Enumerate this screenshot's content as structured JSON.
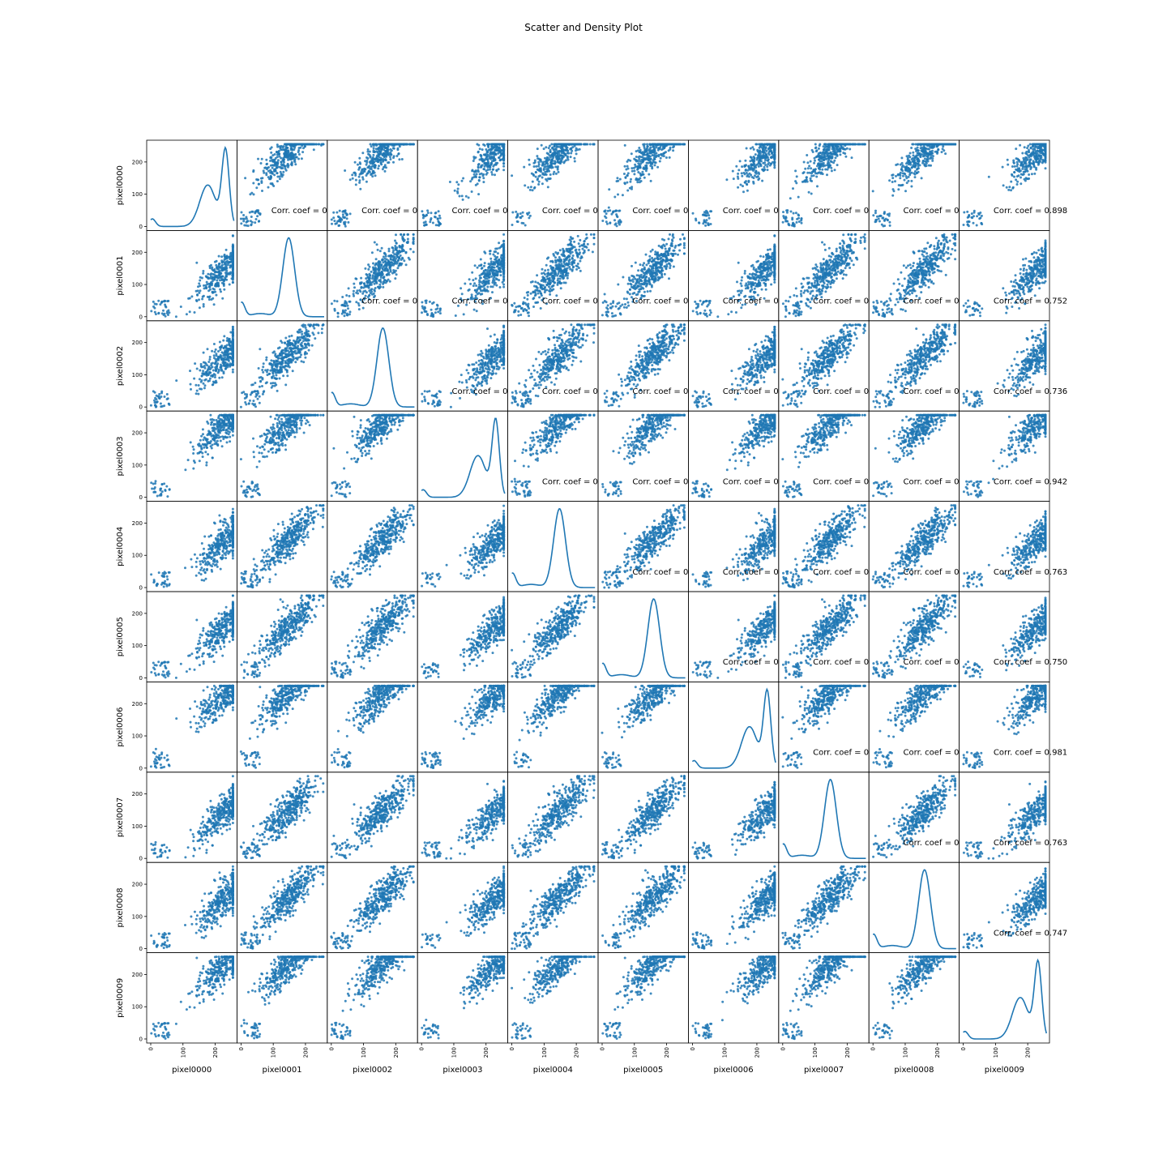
{
  "chart_data": {
    "type": "scatter-matrix",
    "title": "Scatter and Density Plot",
    "variables": [
      "pixel0000",
      "pixel0001",
      "pixel0002",
      "pixel0003",
      "pixel0004",
      "pixel0005",
      "pixel0006",
      "pixel0007",
      "pixel0008",
      "pixel0009"
    ],
    "diagonal": "kde",
    "offdiagonal": "scatter",
    "axis_range": [
      0,
      255
    ],
    "ticks": [
      0,
      100,
      200
    ],
    "tick_labels": [
      "0",
      "100",
      "200"
    ],
    "grid": false,
    "series_color": "#1f77b4",
    "corr_annotations": [
      {
        "row": 0,
        "col": 1,
        "text": "Corr. coef = 0"
      },
      {
        "row": 0,
        "col": 2,
        "text": "Corr. coef = 0"
      },
      {
        "row": 0,
        "col": 3,
        "text": "Corr. coef = 0"
      },
      {
        "row": 0,
        "col": 4,
        "text": "Corr. coef = 0"
      },
      {
        "row": 0,
        "col": 5,
        "text": "Corr. coef = 0"
      },
      {
        "row": 0,
        "col": 6,
        "text": "Corr. coef = 0"
      },
      {
        "row": 0,
        "col": 7,
        "text": "Corr. coef = 0"
      },
      {
        "row": 0,
        "col": 8,
        "text": "Corr. coef = 0"
      },
      {
        "row": 0,
        "col": 9,
        "text": "Corr. coef = 0.898"
      },
      {
        "row": 1,
        "col": 2,
        "text": "Corr. coef = 0"
      },
      {
        "row": 1,
        "col": 3,
        "text": "Corr. coef = 0"
      },
      {
        "row": 1,
        "col": 4,
        "text": "Corr. coef = 0"
      },
      {
        "row": 1,
        "col": 5,
        "text": "Corr. coef = 0"
      },
      {
        "row": 1,
        "col": 6,
        "text": "Corr. coef = 0"
      },
      {
        "row": 1,
        "col": 7,
        "text": "Corr. coef = 0"
      },
      {
        "row": 1,
        "col": 8,
        "text": "Corr. coef = 0"
      },
      {
        "row": 1,
        "col": 9,
        "text": "Corr. coef = 0.752"
      },
      {
        "row": 2,
        "col": 3,
        "text": "Corr. coef = 0"
      },
      {
        "row": 2,
        "col": 4,
        "text": "Corr. coef = 0"
      },
      {
        "row": 2,
        "col": 5,
        "text": "Corr. coef = 0"
      },
      {
        "row": 2,
        "col": 6,
        "text": "Corr. coef = 0"
      },
      {
        "row": 2,
        "col": 7,
        "text": "Corr. coef = 0"
      },
      {
        "row": 2,
        "col": 8,
        "text": "Corr. coef = 0"
      },
      {
        "row": 2,
        "col": 9,
        "text": "Corr. coef = 0.736"
      },
      {
        "row": 3,
        "col": 4,
        "text": "Corr. coef = 0"
      },
      {
        "row": 3,
        "col": 5,
        "text": "Corr. coef = 0"
      },
      {
        "row": 3,
        "col": 6,
        "text": "Corr. coef = 0"
      },
      {
        "row": 3,
        "col": 7,
        "text": "Corr. coef = 0"
      },
      {
        "row": 3,
        "col": 8,
        "text": "Corr. coef = 0"
      },
      {
        "row": 3,
        "col": 9,
        "text": "Corr. coef = 0.942"
      },
      {
        "row": 4,
        "col": 5,
        "text": "Corr. coef = 0"
      },
      {
        "row": 4,
        "col": 6,
        "text": "Corr. coef = 0"
      },
      {
        "row": 4,
        "col": 7,
        "text": "Corr. coef = 0"
      },
      {
        "row": 4,
        "col": 8,
        "text": "Corr. coef = 0"
      },
      {
        "row": 4,
        "col": 9,
        "text": "Corr. coef = 0.763"
      },
      {
        "row": 5,
        "col": 6,
        "text": "Corr. coef = 0"
      },
      {
        "row": 5,
        "col": 7,
        "text": "Corr. coef = 0"
      },
      {
        "row": 5,
        "col": 8,
        "text": "Corr. coef = 0"
      },
      {
        "row": 5,
        "col": 9,
        "text": "Corr. coef = 0.750"
      },
      {
        "row": 6,
        "col": 7,
        "text": "Corr. coef = 0"
      },
      {
        "row": 6,
        "col": 8,
        "text": "Corr. coef = 0"
      },
      {
        "row": 6,
        "col": 9,
        "text": "Corr. coef = 0.981"
      },
      {
        "row": 7,
        "col": 8,
        "text": "Corr. coef = 0"
      },
      {
        "row": 7,
        "col": 9,
        "text": "Corr. coef = 0.763"
      },
      {
        "row": 8,
        "col": 9,
        "text": "Corr. coef = 0.747"
      }
    ],
    "diag_density_shape": [
      "skewed-high",
      "bell",
      "bell",
      "skewed-high",
      "bell",
      "bell",
      "skewed-high",
      "bell",
      "bell",
      "skewed-high"
    ],
    "diag_density_peak": [
      232,
      148,
      160,
      230,
      148,
      160,
      232,
      148,
      160,
      232
    ]
  }
}
